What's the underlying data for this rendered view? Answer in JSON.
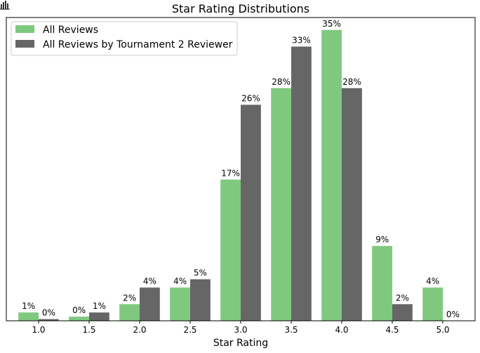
{
  "chart_data": {
    "type": "bar",
    "title": "Star Rating Distributions",
    "xlabel": "Star Rating",
    "ylabel": "",
    "categories": [
      "1.0",
      "1.5",
      "2.0",
      "2.5",
      "3.0",
      "3.5",
      "4.0",
      "4.5",
      "5.0"
    ],
    "series": [
      {
        "name": "All Reviews",
        "color": "#7fc97f",
        "values": [
          1,
          0.5,
          2,
          4,
          17,
          28,
          35,
          9,
          4
        ],
        "labels": [
          "1%",
          "0%",
          "2%",
          "4%",
          "17%",
          "28%",
          "35%",
          "9%",
          "4%"
        ]
      },
      {
        "name": "All Reviews by Tournament 2 Reviewer",
        "color": "#666666",
        "values": [
          0.2,
          1,
          4,
          5,
          26,
          33,
          28,
          2,
          0
        ],
        "labels": [
          "0%",
          "1%",
          "4%",
          "5%",
          "26%",
          "33%",
          "28%",
          "2%",
          "0%"
        ]
      }
    ],
    "ylim": [
      0,
      36.5
    ],
    "yaxis_visible": false,
    "grid": false,
    "legend_position": "top-left",
    "corner_icon": "bar-chart-icon"
  }
}
